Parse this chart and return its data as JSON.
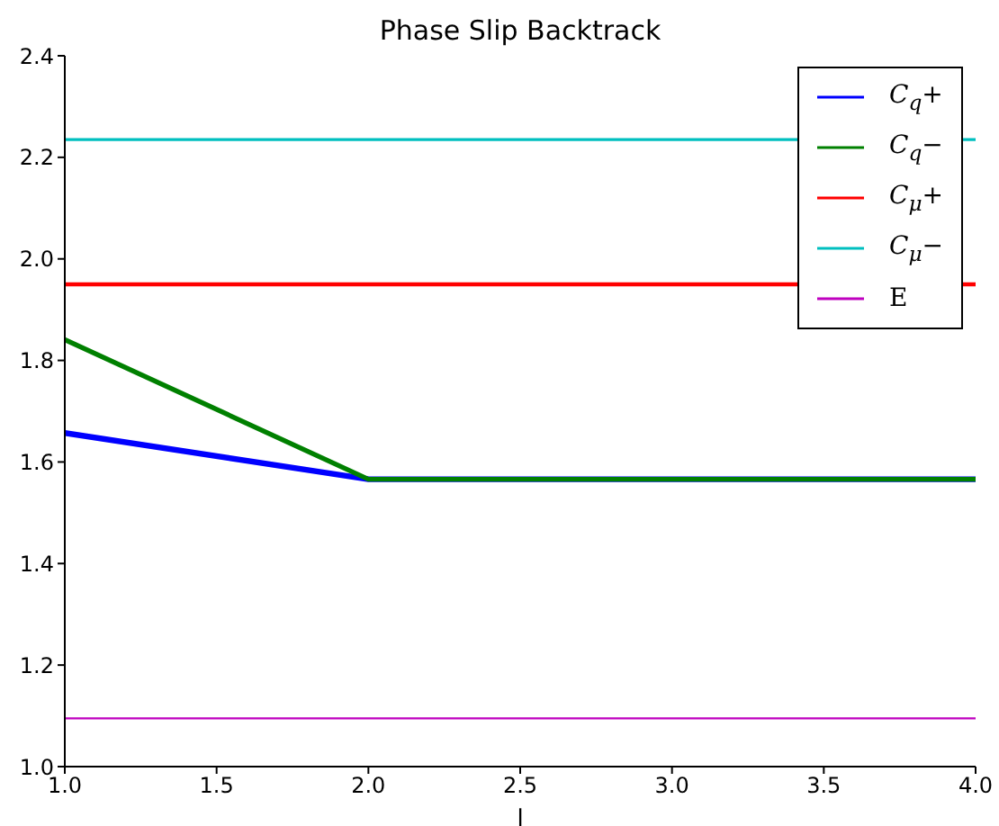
{
  "chart_data": {
    "type": "line",
    "title": "Phase Slip Backtrack",
    "xlabel": "l",
    "x": [
      1,
      2,
      4
    ],
    "series": [
      {
        "name": "C$_{q}$+",
        "color": "#0000ff",
        "values": [
          1.657,
          1.566,
          1.566
        ]
      },
      {
        "name": "C$_{q}$−",
        "color": "#008000",
        "values": [
          1.841,
          1.566,
          1.566
        ]
      },
      {
        "name": "C$_{μ}$+",
        "color": "#ff0000",
        "values": [
          1.95,
          1.95,
          1.95
        ]
      },
      {
        "name": "C$_{μ}$−",
        "color": "#00bfbf",
        "values": [
          2.235,
          2.235,
          2.235
        ]
      },
      {
        "name": "E",
        "color": "#bf00bf",
        "values": [
          1.095,
          1.095,
          1.095
        ]
      }
    ],
    "xlim": [
      1,
      4
    ],
    "xticks": [
      {
        "value": 1,
        "label": "1.0"
      },
      {
        "value": 1.5,
        "label": "1.5"
      },
      {
        "value": 2,
        "label": "2.0"
      },
      {
        "value": 2.5,
        "label": "2.5"
      },
      {
        "value": 3,
        "label": "3.0"
      },
      {
        "value": 3.5,
        "label": "3.5"
      },
      {
        "value": 4,
        "label": "4.0"
      }
    ],
    "ylim": [
      1,
      2.4
    ],
    "yticks": [
      {
        "value": 1,
        "label": "1.0"
      },
      {
        "value": 1.2,
        "label": "1.2"
      },
      {
        "value": 1.4,
        "label": "1.4"
      },
      {
        "value": 1.6,
        "label": "1.6"
      },
      {
        "value": 1.8,
        "label": "1.8"
      },
      {
        "value": 2,
        "label": "2.0"
      },
      {
        "value": 2.2,
        "label": "2.2"
      },
      {
        "value": 2.4,
        "label": "2.4"
      }
    ],
    "grid": false,
    "legend": "top right",
    "marker": "none",
    "line_style": "solid"
  }
}
